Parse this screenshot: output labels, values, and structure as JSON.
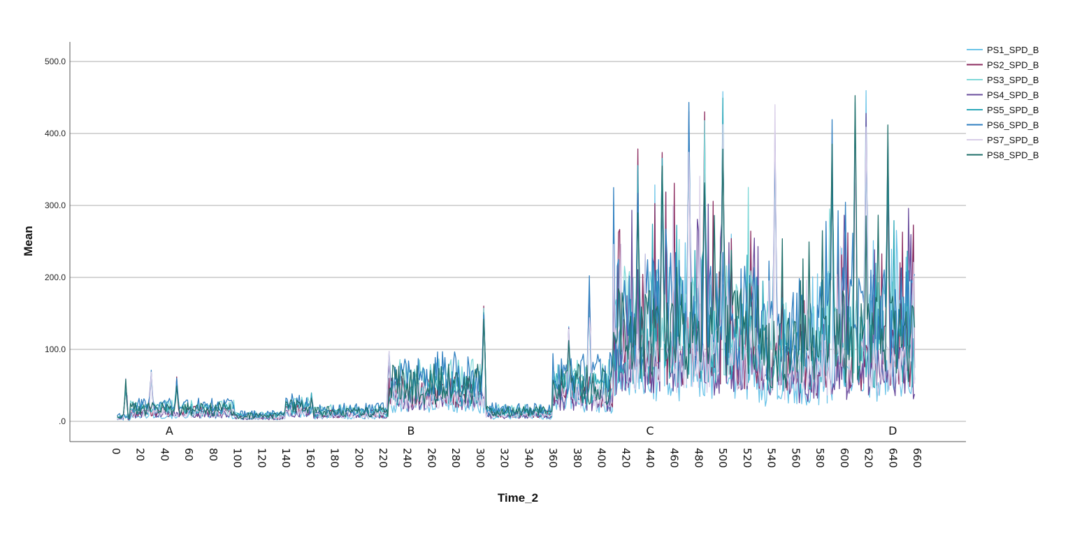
{
  "chart_data": {
    "type": "line",
    "xlabel": "Time_2",
    "ylabel": "Mean",
    "xlim": [
      0,
      660
    ],
    "ylim": [
      0,
      500
    ],
    "x_ticks": [
      "0",
      "20",
      "40",
      "60",
      "80",
      "100",
      "120",
      "140",
      "160",
      "180",
      "200",
      "220",
      "240",
      "260",
      "280",
      "300",
      "320",
      "340",
      "360",
      "380",
      "400",
      "420",
      "440",
      "460",
      "480",
      "500",
      "520",
      "540",
      "560",
      "580",
      "600",
      "620",
      "640",
      "660"
    ],
    "y_ticks": [
      ".0",
      "100.0",
      "200.0",
      "300.0",
      "400.0",
      "500.0"
    ],
    "grid": "horizontal",
    "legend_position": "right",
    "phase_annotations": [
      {
        "text": "A",
        "x": 44
      },
      {
        "text": "B",
        "x": 243
      },
      {
        "text": "C",
        "x": 440
      },
      {
        "text": "D",
        "x": 640
      }
    ],
    "segments": [
      {
        "from": 0,
        "to": 12,
        "level": 5
      },
      {
        "from": 12,
        "to": 98,
        "level": 15
      },
      {
        "from": 98,
        "to": 140,
        "level": 7
      },
      {
        "from": 140,
        "to": 160,
        "level": 18
      },
      {
        "from": 160,
        "to": 225,
        "level": 12
      },
      {
        "from": 225,
        "to": 305,
        "level": 45
      },
      {
        "from": 305,
        "to": 360,
        "level": 12
      },
      {
        "from": 360,
        "to": 410,
        "level": 45
      },
      {
        "from": 410,
        "to": 530,
        "level": 110
      },
      {
        "from": 530,
        "to": 580,
        "level": 85
      },
      {
        "from": 580,
        "to": 660,
        "level": 100
      }
    ],
    "peaks": [
      {
        "x": 8,
        "y": 60
      },
      {
        "x": 29,
        "y": 74
      },
      {
        "x": 50,
        "y": 65
      },
      {
        "x": 161,
        "y": 40
      },
      {
        "x": 225,
        "y": 110
      },
      {
        "x": 303,
        "y": 172
      },
      {
        "x": 373,
        "y": 150
      },
      {
        "x": 390,
        "y": 205
      },
      {
        "x": 430,
        "y": 400
      },
      {
        "x": 450,
        "y": 440
      },
      {
        "x": 472,
        "y": 475
      },
      {
        "x": 485,
        "y": 465
      },
      {
        "x": 500,
        "y": 470
      },
      {
        "x": 543,
        "y": 453
      },
      {
        "x": 590,
        "y": 445
      },
      {
        "x": 609,
        "y": 490
      },
      {
        "x": 618,
        "y": 475
      },
      {
        "x": 636,
        "y": 432
      }
    ],
    "series": [
      {
        "name": "PS1_SPD_B",
        "color": "#6cc4e8"
      },
      {
        "name": "PS2_SPD_B",
        "color": "#8b2a5e"
      },
      {
        "name": "PS3_SPD_B",
        "color": "#7fd8d8"
      },
      {
        "name": "PS4_SPD_B",
        "color": "#6a4c9c"
      },
      {
        "name": "PS5_SPD_B",
        "color": "#2ba8b8"
      },
      {
        "name": "PS6_SPD_B",
        "color": "#2f7fc0"
      },
      {
        "name": "PS7_SPD_B",
        "color": "#d8cde8"
      },
      {
        "name": "PS8_SPD_B",
        "color": "#1f6f6a"
      }
    ]
  }
}
